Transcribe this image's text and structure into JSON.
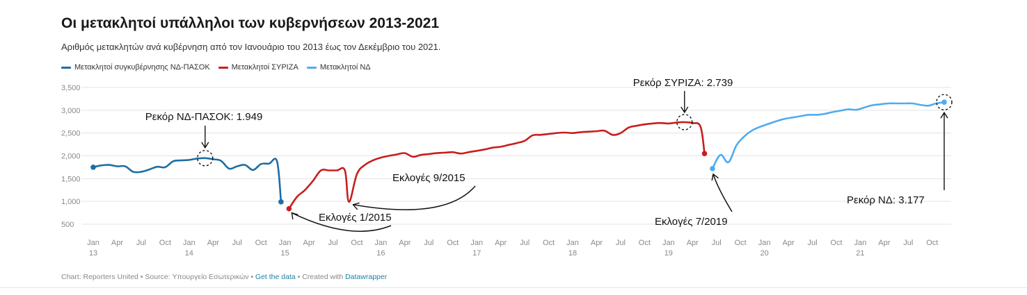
{
  "chart_data": {
    "type": "line",
    "title": "Οι μετακλητοί υπάλληλοι των κυβερνήσεων 2013-2021",
    "subtitle": "Αριθμός μετακλητών ανά κυβέρνηση από τον Ιανουάριο του 2013 έως τον Δεκέμβριο του 2021.",
    "ylim": [
      400,
      3550
    ],
    "yticks": [
      500,
      1000,
      1500,
      2000,
      2500,
      3000,
      3500
    ],
    "ytick_labels": [
      "500",
      "1,000",
      "1,500",
      "2,000",
      "2,500",
      "3,000",
      "3,500"
    ],
    "x_unit": "months since Jan 2013",
    "xlim": [
      0,
      107
    ],
    "xticks": [
      {
        "m": 0,
        "label": "Jan",
        "year": "13"
      },
      {
        "m": 3,
        "label": "Apr",
        "year": ""
      },
      {
        "m": 6,
        "label": "Jul",
        "year": ""
      },
      {
        "m": 9,
        "label": "Oct",
        "year": ""
      },
      {
        "m": 12,
        "label": "Jan",
        "year": "14"
      },
      {
        "m": 15,
        "label": "Apr",
        "year": ""
      },
      {
        "m": 18,
        "label": "Jul",
        "year": ""
      },
      {
        "m": 21,
        "label": "Oct",
        "year": ""
      },
      {
        "m": 24,
        "label": "Jan",
        "year": "15"
      },
      {
        "m": 27,
        "label": "Apr",
        "year": ""
      },
      {
        "m": 30,
        "label": "Jul",
        "year": ""
      },
      {
        "m": 33,
        "label": "Oct",
        "year": ""
      },
      {
        "m": 36,
        "label": "Jan",
        "year": "16"
      },
      {
        "m": 39,
        "label": "Apr",
        "year": ""
      },
      {
        "m": 42,
        "label": "Jul",
        "year": ""
      },
      {
        "m": 45,
        "label": "Oct",
        "year": ""
      },
      {
        "m": 48,
        "label": "Jan",
        "year": "17"
      },
      {
        "m": 51,
        "label": "Apr",
        "year": ""
      },
      {
        "m": 54,
        "label": "Jul",
        "year": ""
      },
      {
        "m": 57,
        "label": "Oct",
        "year": ""
      },
      {
        "m": 60,
        "label": "Jan",
        "year": "18"
      },
      {
        "m": 63,
        "label": "Apr",
        "year": ""
      },
      {
        "m": 66,
        "label": "Jul",
        "year": ""
      },
      {
        "m": 69,
        "label": "Oct",
        "year": ""
      },
      {
        "m": 72,
        "label": "Jan",
        "year": "19"
      },
      {
        "m": 75,
        "label": "Apr",
        "year": ""
      },
      {
        "m": 78,
        "label": "Jul",
        "year": ""
      },
      {
        "m": 81,
        "label": "Oct",
        "year": ""
      },
      {
        "m": 84,
        "label": "Jan",
        "year": "20"
      },
      {
        "m": 87,
        "label": "Apr",
        "year": ""
      },
      {
        "m": 90,
        "label": "Jul",
        "year": ""
      },
      {
        "m": 93,
        "label": "Oct",
        "year": ""
      },
      {
        "m": 96,
        "label": "Jan",
        "year": "21"
      },
      {
        "m": 99,
        "label": "Apr",
        "year": ""
      },
      {
        "m": 102,
        "label": "Jul",
        "year": ""
      },
      {
        "m": 105,
        "label": "Oct",
        "year": ""
      }
    ],
    "series": [
      {
        "name": "Μετακλητοί συγκυβέρνησης ΝΔ-ΠΑΣΟΚ",
        "color": "#1c6ea4",
        "x": [
          0,
          1,
          2,
          3,
          4,
          5,
          6,
          7,
          8,
          9,
          10,
          11,
          12,
          13,
          14,
          15,
          16,
          17,
          18,
          19,
          20,
          21,
          22,
          23,
          23.5
        ],
        "values": [
          1750,
          1790,
          1800,
          1770,
          1770,
          1650,
          1650,
          1700,
          1760,
          1750,
          1880,
          1900,
          1910,
          1940,
          1949,
          1925,
          1890,
          1720,
          1770,
          1800,
          1690,
          1820,
          1830,
          1880,
          990
        ]
      },
      {
        "name": "Μετακλητοί ΣΥΡΙΖΑ",
        "color": "#c71e1d",
        "x": [
          24.5,
          25.5,
          26.5,
          27.5,
          28.5,
          29.5,
          30.5,
          31.5,
          32.0,
          33,
          34,
          35,
          36,
          37,
          38,
          39,
          40,
          41,
          42,
          43,
          44,
          45,
          46,
          47,
          48,
          49,
          50,
          51,
          52,
          53,
          54,
          55,
          56,
          57,
          58,
          59,
          60,
          61,
          62,
          63,
          64,
          65,
          66,
          67,
          68,
          69,
          70,
          71,
          72,
          73,
          74,
          75,
          76,
          76.5
        ],
        "values": [
          840,
          1100,
          1250,
          1450,
          1680,
          1680,
          1680,
          1680,
          990,
          1600,
          1800,
          1900,
          1960,
          2000,
          2030,
          2060,
          1980,
          2020,
          2040,
          2060,
          2070,
          2080,
          2050,
          2080,
          2110,
          2140,
          2180,
          2200,
          2240,
          2280,
          2330,
          2450,
          2460,
          2480,
          2500,
          2510,
          2500,
          2520,
          2530,
          2540,
          2550,
          2460,
          2500,
          2620,
          2660,
          2690,
          2710,
          2720,
          2710,
          2730,
          2739,
          2720,
          2640,
          2050
        ]
      },
      {
        "name": "Μετακλητοί ΝΔ",
        "color": "#4eacf0",
        "x": [
          77.5,
          78.5,
          79.5,
          80.5,
          81.5,
          82.5,
          83.5,
          84.5,
          85.5,
          86.5,
          87.5,
          88.5,
          89.5,
          90.5,
          91.5,
          92.5,
          93.5,
          94.5,
          95.5,
          96.5,
          97.5,
          98.5,
          99.5,
          100.5,
          101.5,
          102.5,
          103.5,
          104.5,
          105.5,
          106.5
        ],
        "values": [
          1720,
          2020,
          1860,
          2230,
          2430,
          2560,
          2640,
          2700,
          2760,
          2810,
          2840,
          2870,
          2900,
          2900,
          2920,
          2960,
          2990,
          3020,
          3010,
          3060,
          3110,
          3130,
          3150,
          3150,
          3150,
          3150,
          3120,
          3100,
          3150,
          3177
        ]
      }
    ],
    "endpoints": [
      {
        "x": 0,
        "y": 1750,
        "series": 0
      },
      {
        "x": 23.5,
        "y": 990,
        "series": 0
      },
      {
        "x": 24.5,
        "y": 840,
        "series": 1
      },
      {
        "x": 76.5,
        "y": 2050,
        "series": 1
      },
      {
        "x": 77.5,
        "y": 1720,
        "series": 2
      },
      {
        "x": 106.5,
        "y": 3177,
        "series": 2
      }
    ],
    "annotations": [
      {
        "text": "Ρεκόρ ΝΔ-ΠΑΣΟΚ: 1.949",
        "x": 14,
        "y": 1949
      },
      {
        "text": "Ρεκόρ ΣΥΡΙΖΑ: 2.739",
        "x": 74,
        "y": 2739
      },
      {
        "text": "Ρεκόρ ΝΔ: 3.177",
        "x": 106.5,
        "y": 3177
      },
      {
        "text": "Εκλογές 1/2015",
        "x": 24.5,
        "y": 840
      },
      {
        "text": "Εκλογές 9/2015",
        "x": 32.0,
        "y": 990
      },
      {
        "text": "Εκλογές 7/2019",
        "x": 77.5,
        "y": 1720
      }
    ]
  },
  "footer": {
    "credit": "Chart: Reporters United • Source: Υπουργείο Εσωτερικών • ",
    "get_data": "Get the data",
    "sep": " • Created with ",
    "tool": "Datawrapper"
  }
}
